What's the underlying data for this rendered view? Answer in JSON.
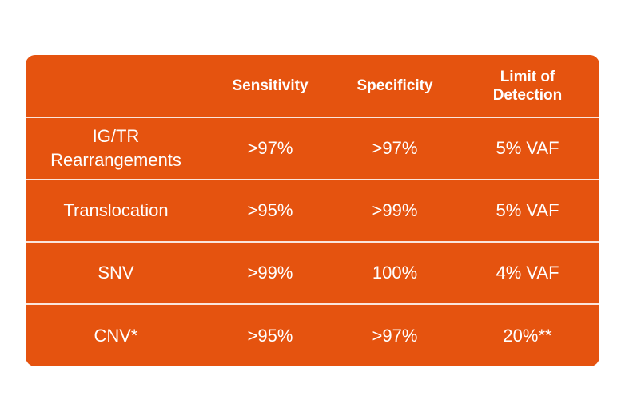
{
  "table": {
    "headers": [
      "",
      "Sensitivity",
      "Specificity",
      "Limit of Detection"
    ],
    "header_lines": {
      "limit_line1": "Limit of",
      "limit_line2": "Detection"
    },
    "rows": [
      {
        "label_line1": "IG/TR",
        "label_line2": "Rearrangements",
        "sensitivity": ">97%",
        "specificity": ">97%",
        "lod": "5% VAF"
      },
      {
        "label": "Translocation",
        "sensitivity": ">95%",
        "specificity": ">99%",
        "lod": "5% VAF"
      },
      {
        "label": "SNV",
        "sensitivity": ">99%",
        "specificity": "100%",
        "lod": "4% VAF"
      },
      {
        "label": "CNV*",
        "sensitivity": ">95%",
        "specificity": ">97%",
        "lod": "20%**"
      }
    ]
  },
  "colors": {
    "background": "#e5530f",
    "text": "#ffffff",
    "divider": "#ffffff"
  }
}
